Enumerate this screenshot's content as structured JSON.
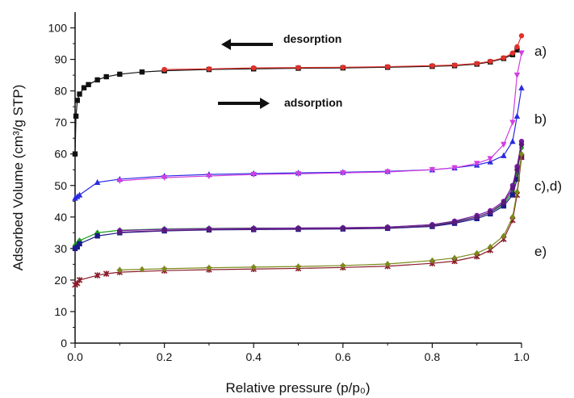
{
  "chart_data": {
    "type": "line",
    "title": "",
    "xlabel": "Relative pressure (p/p₀)",
    "ylabel": "Adsorbed  Volume (cm³/g STP)",
    "xlim": [
      0,
      1.0
    ],
    "ylim": [
      0,
      105
    ],
    "xticks": [
      "0.0",
      "0.2",
      "0.4",
      "0.6",
      "0.8",
      "1.0"
    ],
    "yticks": [
      "0",
      "10",
      "20",
      "30",
      "40",
      "50",
      "60",
      "70",
      "80",
      "90",
      "100"
    ],
    "grid": false,
    "annotations": {
      "desorption": "desorption",
      "adsorption": "adsorption"
    },
    "side_labels": [
      "a)",
      "b)",
      "c),d)",
      "e)"
    ],
    "colors": {
      "a_ads": "#111111",
      "a_des": "#e0302a",
      "b_ads": "#2a2ae0",
      "b_des": "#d23ee0",
      "c_ads": "#1a9a1a",
      "c_des": "#7a1aa8",
      "d_ads": "#1a1a8a",
      "d_des": "#5a1a7a",
      "e_ads": "#8a1a2a",
      "e_des": "#7a8a1a"
    },
    "series": [
      {
        "key": "a_ads",
        "marker": "square",
        "x": [
          0.0,
          0.002,
          0.005,
          0.01,
          0.02,
          0.03,
          0.05,
          0.07,
          0.1,
          0.15,
          0.2,
          0.3,
          0.4,
          0.5,
          0.6,
          0.7,
          0.8,
          0.85,
          0.9,
          0.93,
          0.96,
          0.98,
          0.99
        ],
        "y": [
          60,
          72,
          77,
          79,
          81,
          82,
          83.5,
          84.5,
          85.3,
          86,
          86.4,
          86.8,
          87,
          87.2,
          87.3,
          87.5,
          87.8,
          88,
          88.5,
          89.2,
          90.3,
          91.5,
          93
        ]
      },
      {
        "key": "a_des",
        "marker": "circle",
        "x": [
          0.2,
          0.3,
          0.4,
          0.5,
          0.6,
          0.7,
          0.8,
          0.85,
          0.9,
          0.93,
          0.96,
          0.98,
          0.99,
          1.0
        ],
        "y": [
          86.8,
          87,
          87.3,
          87.4,
          87.5,
          87.7,
          88,
          88.2,
          88.7,
          89.4,
          90.5,
          92,
          94,
          97.5
        ]
      },
      {
        "key": "b_ads",
        "marker": "triangle-up",
        "x": [
          0.0,
          0.005,
          0.01,
          0.05,
          0.1,
          0.2,
          0.3,
          0.4,
          0.5,
          0.6,
          0.7,
          0.8,
          0.85,
          0.9,
          0.93,
          0.96,
          0.98,
          0.99,
          1.0
        ],
        "y": [
          46,
          46.5,
          47,
          51,
          52,
          53,
          53.5,
          53.8,
          54,
          54.2,
          54.5,
          55,
          55.6,
          56.5,
          57.5,
          59.5,
          64,
          72,
          81
        ]
      },
      {
        "key": "b_des",
        "marker": "triangle-down",
        "x": [
          0.1,
          0.2,
          0.3,
          0.4,
          0.5,
          0.6,
          0.7,
          0.8,
          0.85,
          0.9,
          0.93,
          0.96,
          0.98,
          0.99,
          1.0
        ],
        "y": [
          51.5,
          52.5,
          53,
          53.5,
          53.7,
          54,
          54.3,
          55,
          55.6,
          57,
          58.5,
          63,
          70,
          85,
          92
        ]
      },
      {
        "key": "c_ads",
        "marker": "diamond",
        "x": [
          0.0,
          0.005,
          0.01,
          0.05,
          0.1,
          0.2,
          0.3,
          0.4,
          0.5,
          0.6,
          0.7,
          0.8,
          0.85,
          0.9,
          0.93,
          0.96,
          0.98,
          0.99,
          1.0
        ],
        "y": [
          31,
          31.5,
          32.5,
          35,
          35.8,
          36.2,
          36.4,
          36.5,
          36.5,
          36.6,
          36.8,
          37.5,
          38.5,
          40,
          41.5,
          44,
          48,
          54,
          62
        ]
      },
      {
        "key": "c_des",
        "marker": "circle",
        "x": [
          0.1,
          0.2,
          0.3,
          0.4,
          0.5,
          0.6,
          0.7,
          0.8,
          0.85,
          0.9,
          0.93,
          0.96,
          0.98,
          0.99,
          1.0
        ],
        "y": [
          35.7,
          36.1,
          36.3,
          36.4,
          36.5,
          36.6,
          36.8,
          37.6,
          38.7,
          40.5,
          42,
          45,
          50,
          56,
          64
        ]
      },
      {
        "key": "d_ads",
        "marker": "square",
        "x": [
          0.0,
          0.005,
          0.01,
          0.05,
          0.1,
          0.2,
          0.3,
          0.4,
          0.5,
          0.6,
          0.7,
          0.8,
          0.85,
          0.9,
          0.93,
          0.96,
          0.98,
          0.99,
          1.0
        ],
        "y": [
          30,
          30.5,
          31.5,
          34,
          35,
          35.6,
          35.9,
          36,
          36.1,
          36.2,
          36.4,
          37,
          38,
          39.5,
          41,
          43.5,
          47,
          52,
          59
        ]
      },
      {
        "key": "d_des",
        "marker": "circle",
        "x": [
          0.1,
          0.2,
          0.3,
          0.4,
          0.5,
          0.6,
          0.7,
          0.8,
          0.85,
          0.9,
          0.93,
          0.96,
          0.98,
          0.99,
          1.0
        ],
        "y": [
          35.2,
          35.7,
          36,
          36.1,
          36.2,
          36.3,
          36.5,
          37.2,
          38.3,
          40,
          41.5,
          44.5,
          49,
          55,
          63
        ]
      },
      {
        "key": "e_ads",
        "marker": "star",
        "x": [
          0.0,
          0.005,
          0.01,
          0.05,
          0.07,
          0.1,
          0.2,
          0.3,
          0.4,
          0.5,
          0.6,
          0.7,
          0.8,
          0.85,
          0.9,
          0.93,
          0.96,
          0.98,
          0.99,
          1.0
        ],
        "y": [
          18.5,
          19,
          20,
          21.5,
          22,
          22.5,
          23,
          23.3,
          23.5,
          23.7,
          24,
          24.4,
          25.3,
          26,
          27.5,
          29.5,
          33,
          39,
          47,
          59
        ]
      },
      {
        "key": "e_des",
        "marker": "diamond",
        "x": [
          0.1,
          0.15,
          0.2,
          0.3,
          0.4,
          0.5,
          0.6,
          0.7,
          0.8,
          0.85,
          0.9,
          0.93,
          0.96,
          0.98,
          0.99,
          1.0
        ],
        "y": [
          23.2,
          23.4,
          23.6,
          23.9,
          24.1,
          24.3,
          24.6,
          25.1,
          26.2,
          27,
          28.5,
          30.5,
          34,
          40,
          48,
          60
        ]
      }
    ]
  }
}
